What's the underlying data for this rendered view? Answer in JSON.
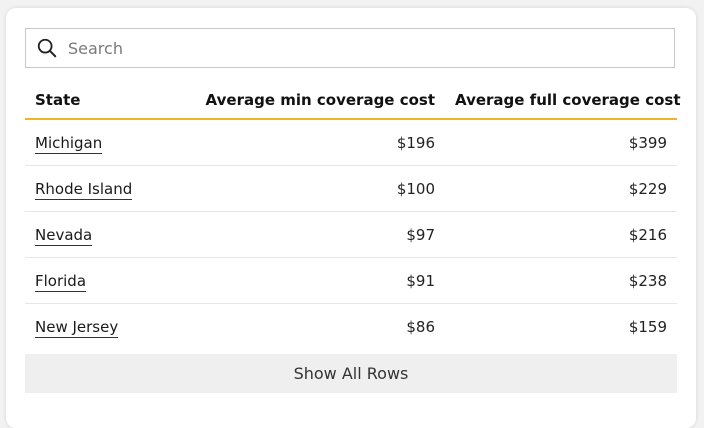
{
  "search": {
    "placeholder": "Search",
    "value": ""
  },
  "table": {
    "columns": [
      "State",
      "Average min coverage cost",
      "Average full coverage cost"
    ],
    "rows": [
      {
        "state": "Michigan",
        "min": "$196",
        "full": "$399"
      },
      {
        "state": "Rhode Island",
        "min": "$100",
        "full": "$229"
      },
      {
        "state": "Nevada",
        "min": "$97",
        "full": "$216"
      },
      {
        "state": "Florida",
        "min": "$91",
        "full": "$238"
      },
      {
        "state": "New Jersey",
        "min": "$86",
        "full": "$159"
      }
    ]
  },
  "show_all_label": "Show All Rows",
  "colors": {
    "header_underline": "#f0b429",
    "show_all_bg": "#efefef"
  },
  "icons": {
    "search": "search-icon"
  }
}
